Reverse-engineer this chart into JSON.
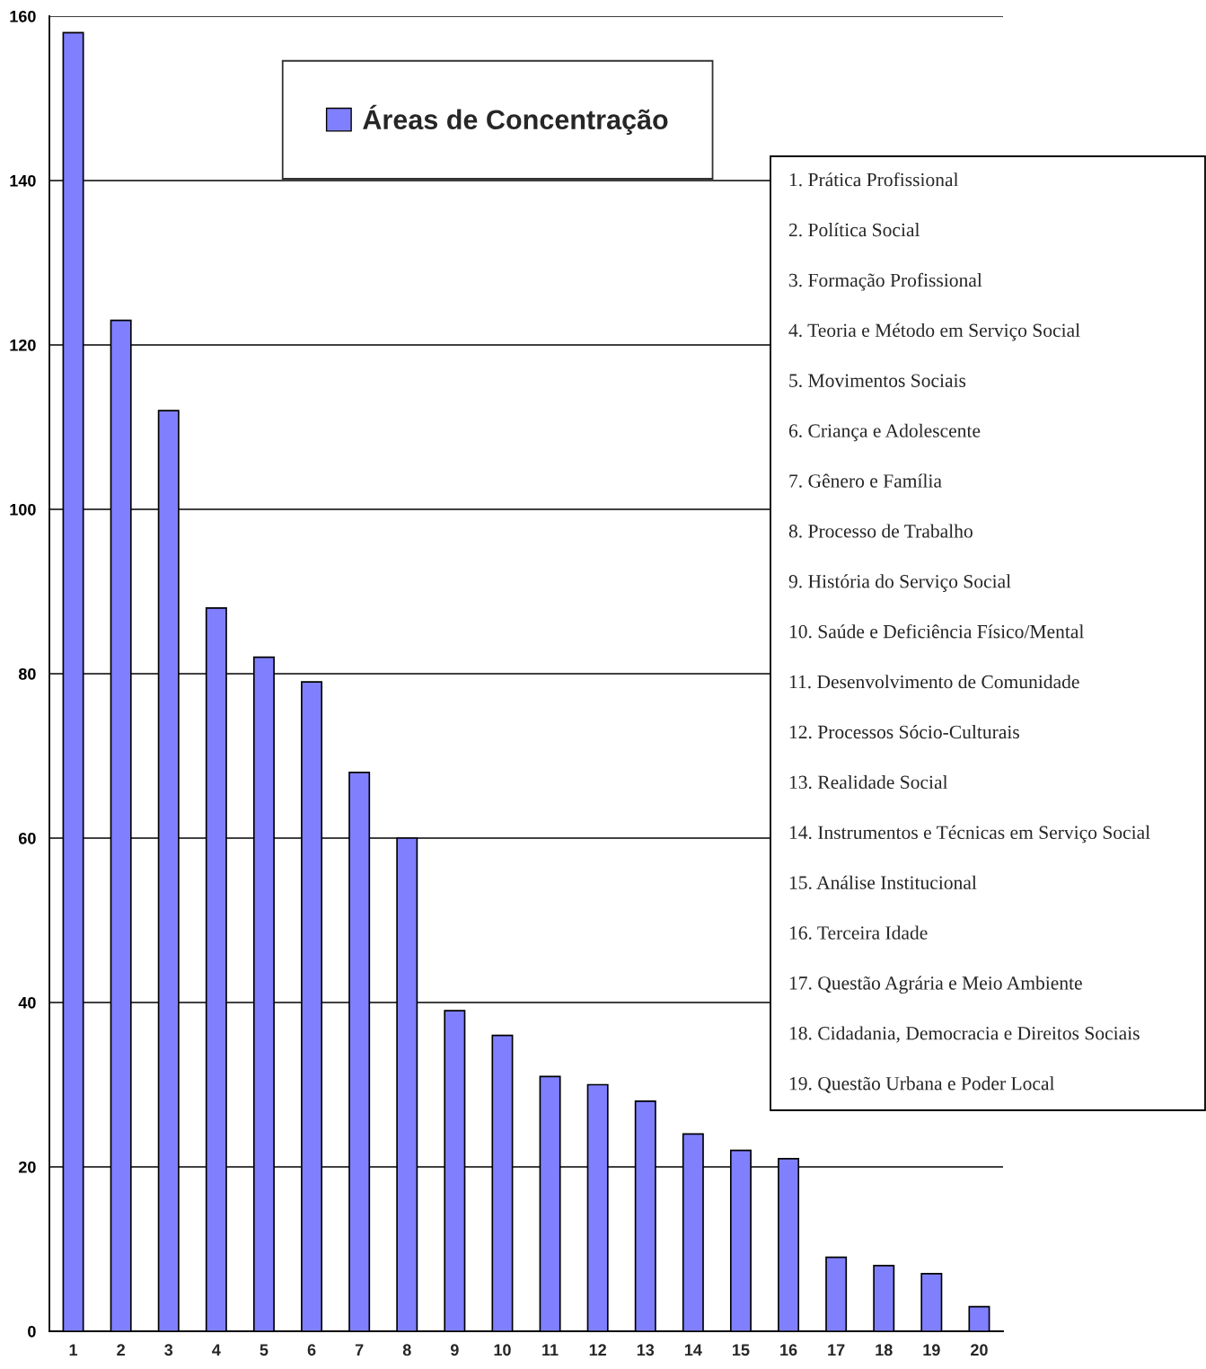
{
  "chart_data": {
    "type": "bar",
    "categories": [
      "1",
      "2",
      "3",
      "4",
      "5",
      "6",
      "7",
      "8",
      "9",
      "10",
      "11",
      "12",
      "13",
      "14",
      "15",
      "16",
      "17",
      "18",
      "19",
      "20"
    ],
    "series": [
      {
        "name": "Áreas de Concentração",
        "color": "#8080ff",
        "values": [
          158,
          123,
          112,
          88,
          82,
          79,
          68,
          60,
          39,
          36,
          31,
          30,
          28,
          24,
          22,
          21,
          9,
          8,
          7,
          3
        ]
      }
    ],
    "ylim": [
      0,
      160
    ],
    "yticks": [
      0,
      20,
      40,
      60,
      80,
      100,
      120,
      140,
      160
    ],
    "grid": "y",
    "legend": "top",
    "annotations": [
      "1. Prática Profissional",
      "2. Política Social",
      "3. Formação Profissional",
      "4. Teoria e Método em Serviço Social",
      "5. Movimentos Sociais",
      "6. Criança e Adolescente",
      "7. Gênero e Família",
      "8. Processo de Trabalho",
      "9. História do Serviço Social",
      "10. Saúde e Deficiência Físico/Mental",
      "11. Desenvolvimento de Comunidade",
      "12. Processos Sócio-Culturais",
      "13. Realidade Social",
      "14. Instrumentos e Técnicas em Serviço Social",
      "15. Análise Institucional",
      "16. Terceira Idade",
      "17. Questão Agrária e Meio Ambiente",
      "18. Cidadania, Democracia e Direitos Sociais",
      "19. Questão Urbana e Poder Local"
    ]
  }
}
